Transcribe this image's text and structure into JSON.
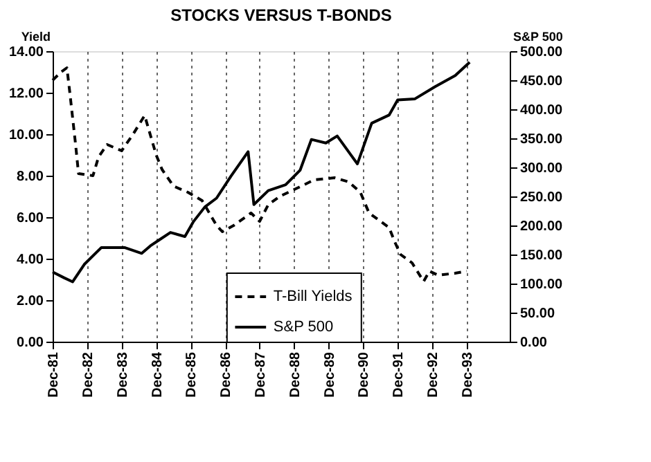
{
  "chart_data": {
    "type": "line",
    "title": "STOCKS VERSUS T-BONDS",
    "ylabel": "Yield",
    "y2label": "S&P 500",
    "xlim": [
      "1981-12",
      "1995-03"
    ],
    "xticks": [
      {
        "value": "1981-12",
        "label": "Dec-81"
      },
      {
        "value": "1982-12",
        "label": "Dec-82"
      },
      {
        "value": "1983-12",
        "label": "Dec-83"
      },
      {
        "value": "1984-12",
        "label": "Dec-84"
      },
      {
        "value": "1985-12",
        "label": "Dec-85"
      },
      {
        "value": "1986-12",
        "label": "Dec-86"
      },
      {
        "value": "1987-12",
        "label": "Dec-87"
      },
      {
        "value": "1988-12",
        "label": "Dec-88"
      },
      {
        "value": "1989-12",
        "label": "Dec-89"
      },
      {
        "value": "1990-12",
        "label": "Dec-90"
      },
      {
        "value": "1991-12",
        "label": "Dec-91"
      },
      {
        "value": "1992-12",
        "label": "Dec-92"
      },
      {
        "value": "1993-12",
        "label": "Dec-93"
      }
    ],
    "ylim": [
      0,
      14
    ],
    "yticks": [
      {
        "value": 0,
        "label": "0.00"
      },
      {
        "value": 2,
        "label": "2.00"
      },
      {
        "value": 4,
        "label": "4.00"
      },
      {
        "value": 6,
        "label": "6.00"
      },
      {
        "value": 8,
        "label": "8.00"
      },
      {
        "value": 10,
        "label": "10.00"
      },
      {
        "value": 12,
        "label": "12.00"
      },
      {
        "value": 14,
        "label": "14.00"
      }
    ],
    "y2lim": [
      0,
      500
    ],
    "y2ticks": [
      {
        "value": 0,
        "label": "0.00"
      },
      {
        "value": 50,
        "label": "50.00"
      },
      {
        "value": 100,
        "label": "100.00"
      },
      {
        "value": 150,
        "label": "150.00"
      },
      {
        "value": 200,
        "label": "200.00"
      },
      {
        "value": 250,
        "label": "250.00"
      },
      {
        "value": 300,
        "label": "300.00"
      },
      {
        "value": 350,
        "label": "350.00"
      },
      {
        "value": 400,
        "label": "400.00"
      },
      {
        "value": 450,
        "label": "450.00"
      },
      {
        "value": 500,
        "label": "500.00"
      }
    ],
    "grid": "x",
    "legend": "bottom",
    "series": [
      {
        "name": "T-Bill Yields",
        "color": "#000000",
        "line_style": "dashed",
        "x": [
          "1981-12",
          "1982-03",
          "1982-05",
          "1982-06",
          "1982-08",
          "1982-09",
          "1983-02",
          "1983-04",
          "1983-07",
          "1983-12",
          "1984-04",
          "1984-08",
          "1984-12",
          "1985-02",
          "1985-06",
          "1985-11",
          "1986-04",
          "1986-09",
          "1986-11",
          "1987-03",
          "1987-09",
          "1987-12",
          "1988-03",
          "1988-07",
          "1989-01",
          "1989-07",
          "1990-02",
          "1990-07",
          "1990-11",
          "1991-02",
          "1991-09",
          "1991-11",
          "1992-01",
          "1992-05",
          "1992-09",
          "1992-11",
          "1993-02",
          "1993-08",
          "1993-12"
        ],
        "values": [
          12.6,
          13.0,
          13.2,
          12.0,
          9.5,
          8.1,
          8.0,
          8.9,
          9.5,
          9.2,
          10.0,
          10.9,
          9.0,
          8.3,
          7.5,
          7.2,
          6.8,
          5.6,
          5.3,
          5.6,
          6.2,
          5.8,
          6.6,
          7.0,
          7.4,
          7.8,
          7.9,
          7.7,
          7.2,
          6.2,
          5.5,
          4.8,
          4.2,
          3.8,
          2.9,
          3.4,
          3.2,
          3.3,
          3.4
        ]
      },
      {
        "name": "S&P 500",
        "color": "#000000",
        "line_style": "solid",
        "axis": "y2",
        "x": [
          "1981-12",
          "1982-04",
          "1982-07",
          "1982-11",
          "1983-05",
          "1984-01",
          "1984-07",
          "1984-10",
          "1985-01",
          "1985-05",
          "1985-10",
          "1986-01",
          "1986-05",
          "1986-09",
          "1987-02",
          "1987-08",
          "1987-10",
          "1988-03",
          "1988-09",
          "1989-02",
          "1989-06",
          "1989-11",
          "1990-03",
          "1990-10",
          "1991-03",
          "1991-09",
          "1991-12",
          "1992-06",
          "1993-01",
          "1993-08",
          "1994-01"
        ],
        "values": [
          120,
          110,
          103,
          133,
          162,
          162,
          152,
          165,
          175,
          188,
          181,
          207,
          232,
          247,
          285,
          327,
          236,
          260,
          270,
          295,
          348,
          342,
          354,
          306,
          376,
          390,
          416,
          418,
          439,
          458,
          481
        ]
      }
    ]
  }
}
